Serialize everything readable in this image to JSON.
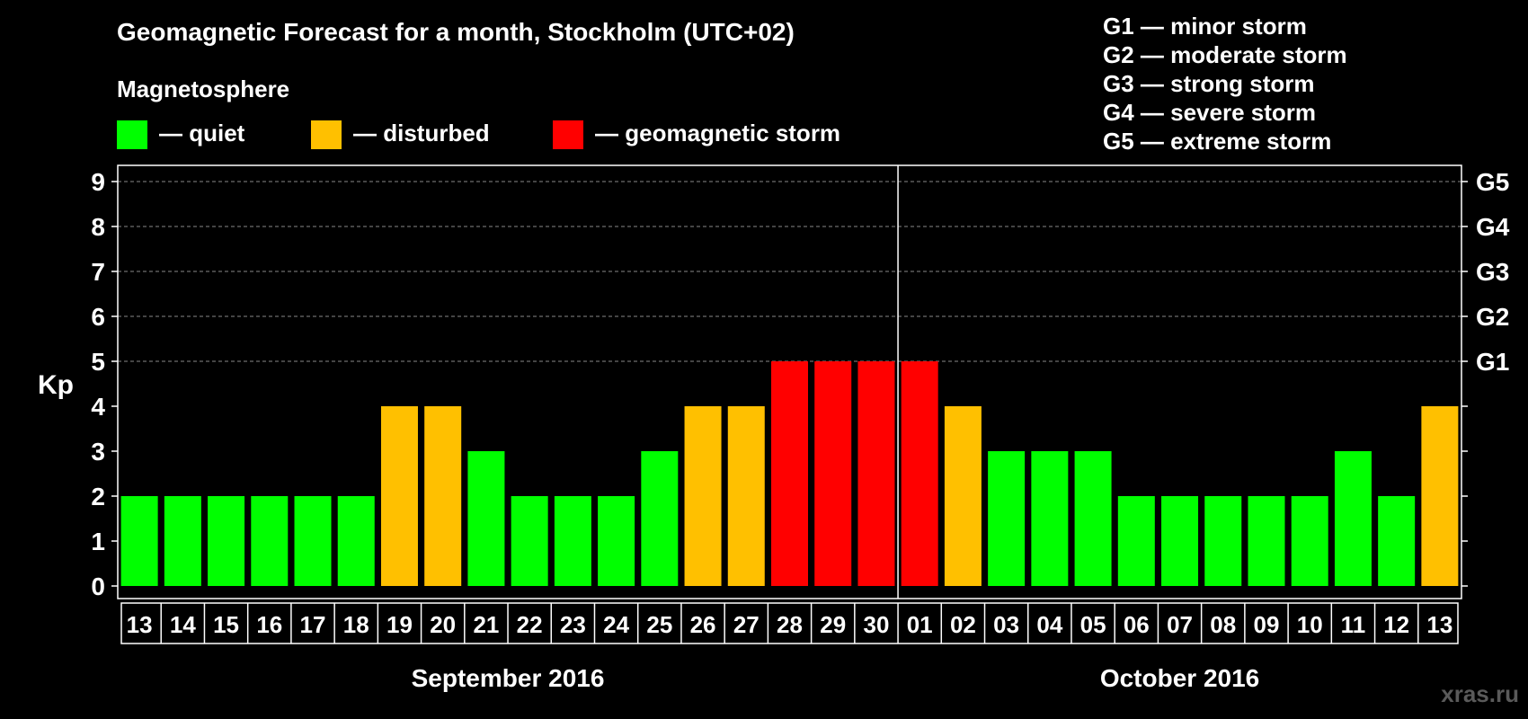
{
  "chart_data": {
    "type": "bar",
    "title": "Geomagnetic Forecast for a month, Stockholm (UTC+02)",
    "ylabel": "Kp",
    "ylim": [
      0,
      9
    ],
    "y_ticks": [
      "0",
      "1",
      "2",
      "3",
      "4",
      "5",
      "6",
      "7",
      "8",
      "9"
    ],
    "right_axis_labels": [
      {
        "kp": 5,
        "label": "G1"
      },
      {
        "kp": 6,
        "label": "G2"
      },
      {
        "kp": 7,
        "label": "G3"
      },
      {
        "kp": 8,
        "label": "G4"
      },
      {
        "kp": 9,
        "label": "G5"
      }
    ],
    "categories": [
      "13",
      "14",
      "15",
      "16",
      "17",
      "18",
      "19",
      "20",
      "21",
      "22",
      "23",
      "24",
      "25",
      "26",
      "27",
      "28",
      "29",
      "30",
      "01",
      "02",
      "03",
      "04",
      "05",
      "06",
      "07",
      "08",
      "09",
      "10",
      "11",
      "12",
      "13"
    ],
    "values": [
      2,
      2,
      2,
      2,
      2,
      2,
      4,
      4,
      3,
      2,
      2,
      2,
      3,
      4,
      4,
      5,
      5,
      5,
      5,
      4,
      3,
      3,
      3,
      2,
      2,
      2,
      2,
      2,
      3,
      2,
      4
    ],
    "months": [
      {
        "label": "September 2016",
        "first_index": 0,
        "last_index": 17
      },
      {
        "label": "October 2016",
        "first_index": 18,
        "last_index": 30
      }
    ],
    "month_divider_after_index": 17,
    "grid": "dashed, Kp 5 to 9"
  },
  "legend": {
    "title": "Magnetosphere",
    "items": [
      {
        "label": "— quiet",
        "color": "#00ff00"
      },
      {
        "label": "— disturbed",
        "color": "#ffc000"
      },
      {
        "label": "— geomagnetic storm",
        "color": "#ff0000"
      }
    ]
  },
  "storm_scale": [
    "G1 — minor storm",
    "G2 — moderate storm",
    "G3 — strong storm",
    "G4 — severe storm",
    "G5 — extreme storm"
  ],
  "watermark": "xras.ru"
}
